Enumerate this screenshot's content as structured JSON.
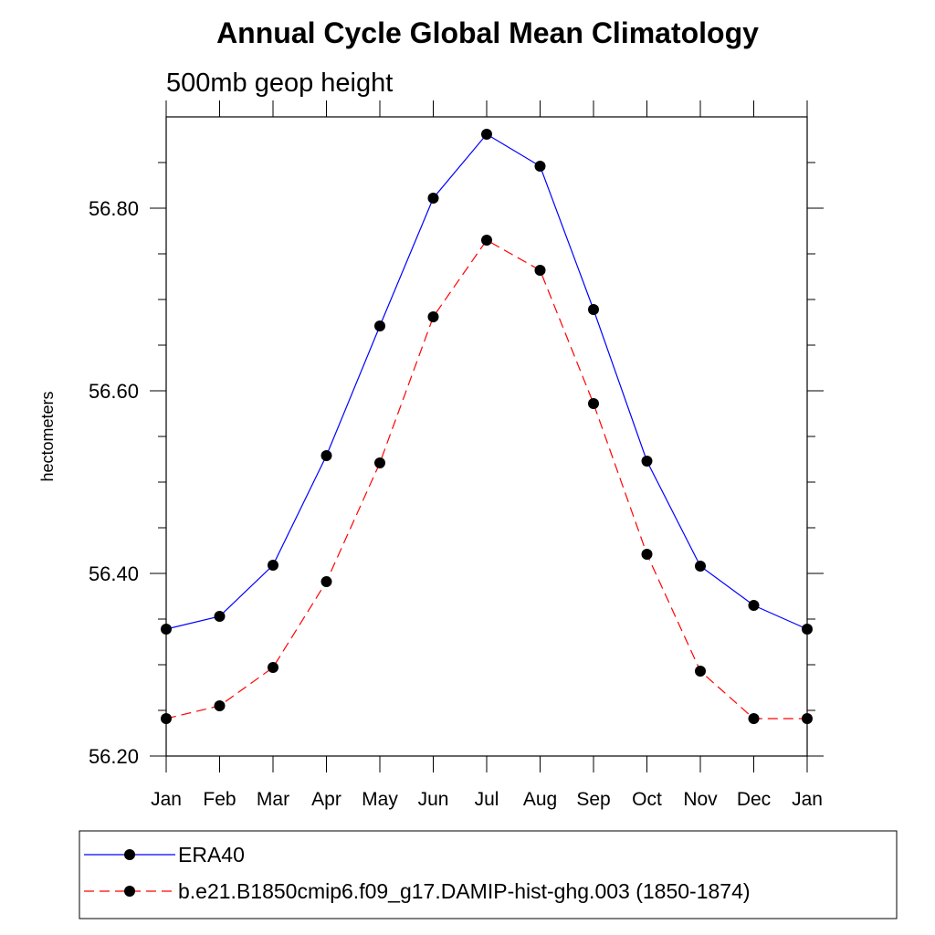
{
  "chart_data": {
    "type": "line",
    "title": "Annual Cycle Global Mean Climatology",
    "subtitle": "500mb geop height",
    "xlabel": "",
    "ylabel": "hectometers",
    "categories": [
      "Jan",
      "Feb",
      "Mar",
      "Apr",
      "May",
      "Jun",
      "Jul",
      "Aug",
      "Sep",
      "Oct",
      "Nov",
      "Dec",
      "Jan"
    ],
    "ylim": [
      56.2,
      56.9
    ],
    "yticks": [
      56.2,
      56.4,
      56.6,
      56.8
    ],
    "ytick_labels": [
      "56.20",
      "56.40",
      "56.60",
      "56.80"
    ],
    "grid": false,
    "legend_position": "bottom",
    "series": [
      {
        "name": "ERA40",
        "color": "#0000ff",
        "dash": "solid",
        "values": [
          56.339,
          56.353,
          56.409,
          56.529,
          56.671,
          56.811,
          56.881,
          56.846,
          56.689,
          56.523,
          56.408,
          56.365,
          56.339
        ]
      },
      {
        "name": "b.e21.B1850cmip6.f09_g17.DAMIP-hist-ghg.003 (1850-1874)",
        "color": "#ff0000",
        "dash": "dashed",
        "values": [
          56.241,
          56.255,
          56.297,
          56.391,
          56.521,
          56.681,
          56.765,
          56.732,
          56.586,
          56.421,
          56.293,
          56.241,
          56.241
        ]
      }
    ]
  }
}
